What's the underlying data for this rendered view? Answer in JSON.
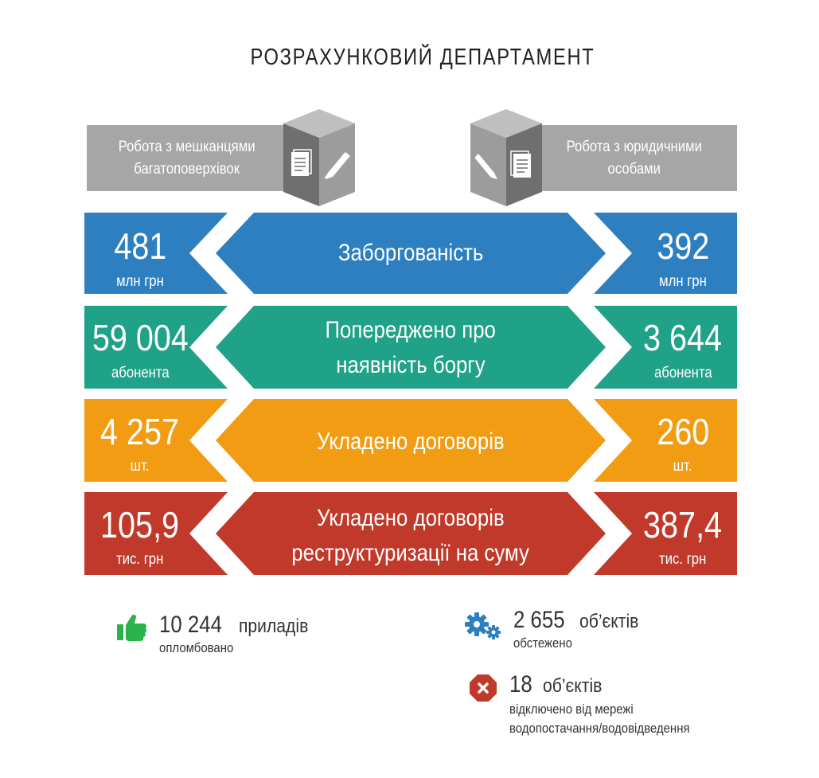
{
  "title": "РОЗРАХУНКОВИЙ ДЕПАРТАМЕНТ",
  "header": {
    "left": [
      "Робота з мешканцями",
      "багатоповерхівок"
    ],
    "right": [
      "Робота з юридичними",
      "особами"
    ]
  },
  "rows": [
    {
      "label": [
        "Заборгованість"
      ],
      "left_value": "481",
      "left_unit": "млн грн",
      "right_value": "392",
      "right_unit": "млн грн",
      "color": "#2e7fbf"
    },
    {
      "label": [
        "Попереджено про",
        "наявність боргу"
      ],
      "left_value": "59 004",
      "left_unit": "абонента",
      "right_value": "3 644",
      "right_unit": "абонента",
      "color": "#1fa287"
    },
    {
      "label": [
        "Укладено договорів"
      ],
      "left_value": "4 257",
      "left_unit": "шт.",
      "right_value": "260",
      "right_unit": "шт.",
      "color": "#f29c14"
    },
    {
      "label": [
        "Укладено договорів",
        "реструктуризації на суму"
      ],
      "left_value": "105,9",
      "left_unit": "тис. грн",
      "right_value": "387,4",
      "right_unit": "тис. грн",
      "color": "#c0392b"
    }
  ],
  "stats": {
    "sealed": {
      "value": "10 244",
      "word": "приладів",
      "sub": "опломбовано",
      "icon": "thumbs-up-icon",
      "color": "#2ab24b"
    },
    "inspected": {
      "value": "2 655",
      "word": "об’єктів",
      "sub": "обстежено",
      "icon": "gears-icon",
      "color": "#2e7fbf"
    },
    "disconnected": {
      "value": "18",
      "word": "об’єктів",
      "sub": [
        "відключено від мережі",
        "водопостачання/водовідведення"
      ],
      "icon": "stop-x-icon",
      "color": "#c0392b"
    }
  }
}
